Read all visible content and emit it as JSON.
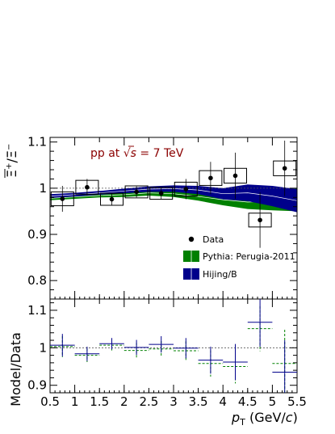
{
  "chart_data": [
    {
      "type": "scatter",
      "panel": "ratio",
      "ylabel_parts": {
        "num": "Ξ",
        "num_sup": "+",
        "den": "Ξ",
        "den_sup": "−"
      },
      "annotation": {
        "pre": "pp at ",
        "sqrt": "√",
        "s": "s",
        "post": " = 7 TeV"
      },
      "xlim": [
        0.5,
        5.5
      ],
      "ylim": [
        0.76,
        1.11
      ],
      "yticks": [
        0.8,
        0.9,
        1,
        1.1
      ],
      "xticks": [
        0.5,
        1,
        1.5,
        2,
        2.5,
        3,
        3.5,
        4,
        4.5,
        5,
        5.5
      ],
      "reference_line": 1,
      "data": {
        "name": "Data",
        "x": [
          0.75,
          1.25,
          1.75,
          2.25,
          2.75,
          3.25,
          3.75,
          4.25,
          4.75,
          5.25
        ],
        "x_err": [
          0.25,
          0.25,
          0.25,
          0.25,
          0.25,
          0.25,
          0.25,
          0.25,
          0.25,
          0.2
        ],
        "y": [
          0.977,
          1.002,
          0.976,
          0.992,
          0.989,
          0.998,
          1.022,
          1.027,
          0.931,
          1.043
        ],
        "stat_err": [
          0.028,
          0.018,
          0.013,
          0.012,
          0.012,
          0.022,
          0.035,
          0.05,
          0.06,
          0.06
        ],
        "sys_err": [
          0.015,
          0.015,
          0.013,
          0.013,
          0.013,
          0.015,
          0.016,
          0.016,
          0.015,
          0.016
        ]
      },
      "pythia": {
        "name": "Pythia: Perugia-2011",
        "color": "#008000",
        "x": [
          0.5,
          1.0,
          1.5,
          2.0,
          2.5,
          3.0,
          3.5,
          4.0,
          4.5,
          5.0,
          5.5
        ],
        "y": [
          0.978,
          0.981,
          0.984,
          0.986,
          0.99,
          0.988,
          0.982,
          0.975,
          0.97,
          0.972,
          0.975
        ],
        "half_width": [
          0.004,
          0.004,
          0.004,
          0.005,
          0.006,
          0.007,
          0.009,
          0.012,
          0.015,
          0.02,
          0.025
        ]
      },
      "hijing": {
        "name": "Hijing/B",
        "color": "#00008b",
        "x": [
          0.5,
          1.0,
          1.5,
          2.0,
          2.5,
          3.0,
          3.5,
          4.0,
          4.5,
          5.0,
          5.5
        ],
        "y": [
          0.983,
          0.986,
          0.99,
          0.994,
          0.998,
          0.999,
          0.996,
          0.988,
          0.99,
          0.983,
          0.973
        ],
        "half_width": [
          0.004,
          0.004,
          0.004,
          0.005,
          0.006,
          0.007,
          0.009,
          0.012,
          0.018,
          0.022,
          0.025
        ]
      }
    },
    {
      "type": "scatter",
      "panel": "model_over_data",
      "ylabel": "Model/Data",
      "xlabel_parts": {
        "main": "p",
        "sub": "T",
        "post": " (GeV/",
        "italic": "c",
        "close": ")"
      },
      "xlim": [
        0.5,
        5.5
      ],
      "ylim": [
        0.88,
        1.13
      ],
      "yticks": [
        0.9,
        1,
        1.1
      ],
      "xticks": [
        0.5,
        1,
        1.5,
        2,
        2.5,
        3,
        3.5,
        4,
        4.5,
        5,
        5.5
      ],
      "reference_line": 1,
      "hijing": {
        "color": "#00008b",
        "x": [
          0.75,
          1.25,
          1.75,
          2.25,
          2.75,
          3.25,
          3.75,
          4.25,
          4.75,
          5.25
        ],
        "y": [
          1.007,
          0.984,
          1.011,
          1.001,
          1.009,
          0.999,
          0.967,
          0.962,
          1.068,
          0.935
        ],
        "err": [
          0.03,
          0.019,
          0.015,
          0.02,
          0.022,
          0.027,
          0.036,
          0.048,
          0.065,
          0.085
        ]
      },
      "pythia": {
        "color": "#008000",
        "x": [
          0.75,
          1.25,
          1.75,
          2.25,
          2.75,
          3.25,
          3.75,
          4.25,
          4.75,
          5.25
        ],
        "y": [
          1.003,
          0.98,
          1.007,
          0.993,
          0.997,
          0.992,
          0.958,
          0.95,
          1.051,
          0.958
        ],
        "err": [
          0.028,
          0.018,
          0.014,
          0.02,
          0.021,
          0.025,
          0.035,
          0.045,
          0.06,
          0.09
        ]
      }
    }
  ]
}
